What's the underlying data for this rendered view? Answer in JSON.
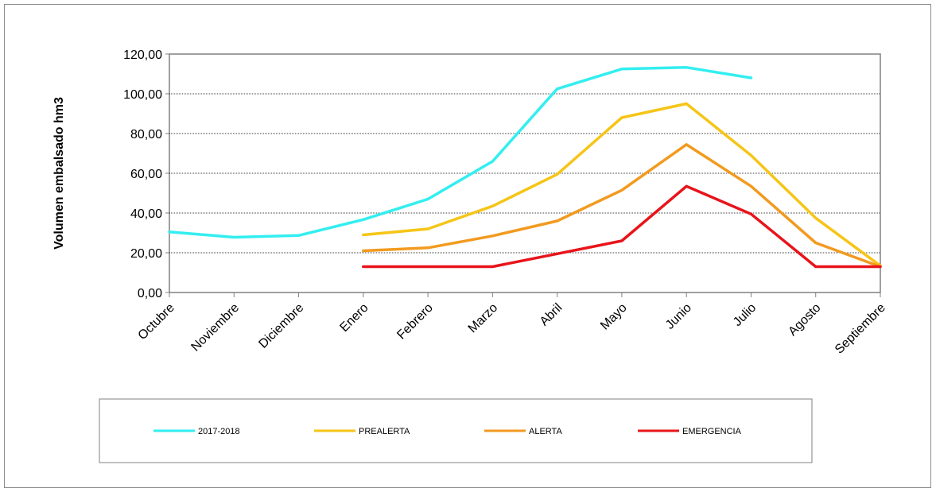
{
  "chart_data": {
    "type": "line",
    "title": "",
    "xlabel": "",
    "ylabel": "Volumen embalsado hm3",
    "ylim": [
      0,
      120
    ],
    "ytick_step": 20,
    "ytick_labels": [
      "0,00",
      "20,00",
      "40,00",
      "60,00",
      "80,00",
      "100,00",
      "120,00"
    ],
    "categories": [
      "Octubre",
      "Noviembre",
      "Diciembre",
      "Enero",
      "Febrero",
      "Marzo",
      "Abril",
      "Mayo",
      "Junio",
      "Julio",
      "Agosto",
      "Septiembre"
    ],
    "grid": true,
    "legend_position": "bottom",
    "series": [
      {
        "name": "2017-2018",
        "color": "#33eef0",
        "values": [
          30.5,
          27.8,
          28.7,
          36.7,
          47.0,
          66.0,
          102.5,
          112.5,
          113.3,
          108.0,
          null,
          null
        ]
      },
      {
        "name": "PREALERTA",
        "color": "#f5c518",
        "values": [
          null,
          null,
          null,
          29.0,
          32.0,
          43.5,
          59.5,
          88.0,
          95.0,
          69.0,
          37.5,
          13.5
        ]
      },
      {
        "name": "ALERTA",
        "color": "#f29a1f",
        "values": [
          null,
          null,
          null,
          21.0,
          22.5,
          28.5,
          36.0,
          51.5,
          74.5,
          53.5,
          25.0,
          13.0
        ]
      },
      {
        "name": "EMERGENCIA",
        "color": "#e8141b",
        "values": [
          null,
          null,
          null,
          13.0,
          13.0,
          13.0,
          19.5,
          26.0,
          53.5,
          39.5,
          13.0,
          13.0
        ]
      }
    ]
  }
}
